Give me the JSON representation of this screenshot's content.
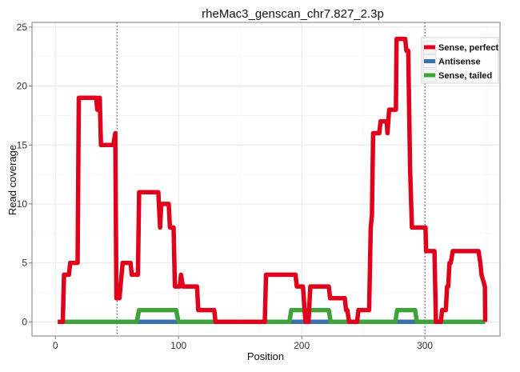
{
  "chart_data": {
    "type": "line",
    "title": "rheMac3_genscan_chr7.827_2.3p",
    "xlabel": "Position",
    "ylabel": "Read coverage",
    "xlim": [
      -19,
      361
    ],
    "ylim": [
      -1.2,
      25.4
    ],
    "xticks": [
      0,
      100,
      200,
      300
    ],
    "yticks": [
      0,
      5,
      10,
      15,
      20,
      25
    ],
    "grid": true,
    "vlines": [
      50,
      300
    ],
    "legend": {
      "placement": "top-right",
      "entries": [
        "Sense, perfect",
        "Antisense",
        "Sense, tailed"
      ]
    },
    "series": [
      {
        "name": "Antisense",
        "color": "#3a6fb0",
        "points": [
          [
            2,
            0
          ],
          [
            349,
            0
          ]
        ]
      },
      {
        "name": "Sense, tailed",
        "color": "#3ea33a",
        "points": [
          [
            2,
            0
          ],
          [
            66,
            0
          ],
          [
            68,
            1
          ],
          [
            98,
            1
          ],
          [
            100,
            0
          ],
          [
            190,
            0
          ],
          [
            191.5,
            1
          ],
          [
            222,
            1
          ],
          [
            223.5,
            0
          ],
          [
            276,
            0
          ],
          [
            277.5,
            1
          ],
          [
            292,
            1
          ],
          [
            293.5,
            0
          ],
          [
            349,
            0
          ]
        ]
      },
      {
        "name": "Sense, perfect",
        "color": "#e0001b",
        "points": [
          [
            2,
            0
          ],
          [
            6,
            0
          ],
          [
            7,
            4
          ],
          [
            11,
            4
          ],
          [
            12,
            5
          ],
          [
            18,
            5
          ],
          [
            19,
            19
          ],
          [
            33,
            19
          ],
          [
            34,
            18
          ],
          [
            35.5,
            19
          ],
          [
            36,
            19
          ],
          [
            37,
            15
          ],
          [
            47,
            15
          ],
          [
            48.6,
            16
          ],
          [
            49.5,
            2
          ],
          [
            52,
            2
          ],
          [
            54.6,
            5
          ],
          [
            61,
            5
          ],
          [
            62,
            4
          ],
          [
            67,
            4
          ],
          [
            68,
            11
          ],
          [
            83.6,
            11
          ],
          [
            84,
            10
          ],
          [
            85,
            8
          ],
          [
            86,
            10
          ],
          [
            92,
            10
          ],
          [
            93,
            8
          ],
          [
            96,
            8
          ],
          [
            97,
            3
          ],
          [
            101,
            3
          ],
          [
            102,
            4
          ],
          [
            103.5,
            3
          ],
          [
            115,
            3
          ],
          [
            116,
            1
          ],
          [
            129,
            1
          ],
          [
            130,
            0
          ],
          [
            170,
            0
          ],
          [
            171,
            4
          ],
          [
            195,
            4
          ],
          [
            196,
            3
          ],
          [
            201,
            3
          ],
          [
            203,
            0
          ],
          [
            205.5,
            0
          ],
          [
            207,
            3
          ],
          [
            222,
            3
          ],
          [
            223,
            2
          ],
          [
            235,
            2
          ],
          [
            236,
            1
          ],
          [
            237,
            1
          ],
          [
            238.5,
            0
          ],
          [
            245,
            0
          ],
          [
            246,
            1
          ],
          [
            254.7,
            1
          ],
          [
            256,
            8
          ],
          [
            257,
            9
          ],
          [
            258,
            16
          ],
          [
            263,
            16
          ],
          [
            264,
            17
          ],
          [
            269,
            17
          ],
          [
            269.6,
            16
          ],
          [
            271,
            18
          ],
          [
            276.5,
            18
          ],
          [
            277,
            24
          ],
          [
            284,
            24
          ],
          [
            285,
            23
          ],
          [
            286.5,
            23
          ],
          [
            288,
            13
          ],
          [
            289.5,
            8
          ],
          [
            300.5,
            8
          ],
          [
            301,
            6
          ],
          [
            307.8,
            6
          ],
          [
            309,
            0
          ],
          [
            313,
            0
          ],
          [
            314,
            1
          ],
          [
            317,
            1
          ],
          [
            318,
            3
          ],
          [
            319,
            3
          ],
          [
            320,
            5
          ],
          [
            321,
            5
          ],
          [
            322.7,
            6
          ],
          [
            343.5,
            6
          ],
          [
            345,
            5
          ],
          [
            346,
            4
          ],
          [
            348.7,
            3
          ],
          [
            349,
            0
          ]
        ]
      }
    ]
  }
}
